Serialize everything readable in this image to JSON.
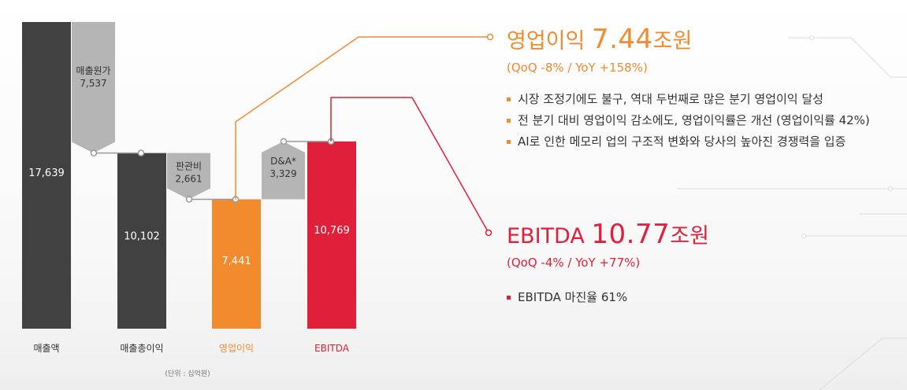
{
  "colors": {
    "dark": "#414141",
    "gray_delta": "#b5b5b5",
    "orange": "#f28a2e",
    "red": "#e0203a",
    "connector": "#9a9a9a"
  },
  "chart_data": {
    "type": "waterfall-bar",
    "categories": [
      "매출액",
      "매출총이익",
      "영업이익",
      "EBITDA"
    ],
    "values": [
      17639,
      10102,
      7441,
      10769
    ],
    "value_labels": [
      "17,639",
      "10,102",
      "7,441",
      "10,769"
    ],
    "deltas": [
      {
        "label": "매출원가",
        "value": 7537,
        "value_label": "7,537",
        "from": 17639,
        "to": 10102
      },
      {
        "label": "판관비",
        "value": 2661,
        "value_label": "2,661",
        "from": 10102,
        "to": 7441
      },
      {
        "label": "D&A*",
        "value": 3329,
        "value_label": "3,329",
        "from": 7441,
        "to": 10769
      }
    ],
    "unit_note": "(단위 : 십억원)",
    "ylim": [
      0,
      17639
    ]
  },
  "panel_op": {
    "title_prefix": "영업이익 ",
    "title_value": "7.44",
    "title_suffix": "조원",
    "change": "(QoQ -8% / YoY +158%)",
    "bullets": [
      "시장 조정기에도 불구, 역대 두번째로 많은 분기 영업이익 달성",
      "전 분기 대비 영업이익 감소에도, 영업이익률은 개선 (영업이익률 42%)",
      "AI로 인한 메모리 업의 구조적 변화와 당사의 높아진 경쟁력을 입증"
    ]
  },
  "panel_ebitda": {
    "title_prefix": "EBITDA ",
    "title_value": "10.77",
    "title_suffix": "조원",
    "change": "(QoQ -4% / YoY +77%)",
    "bullets": [
      "EBITDA 마진율 61%"
    ]
  }
}
